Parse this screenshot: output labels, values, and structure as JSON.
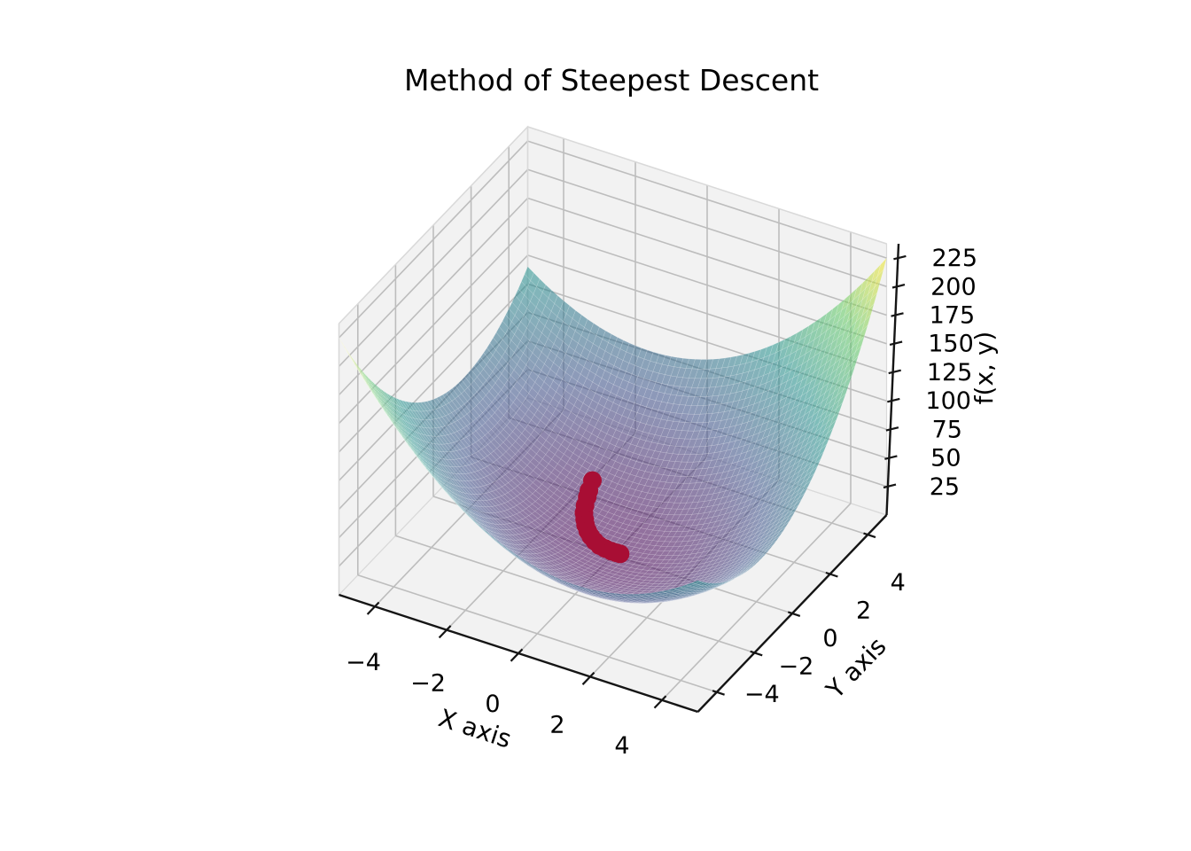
{
  "figure": {
    "title": "Method of Steepest Descent",
    "background": "#ffffff"
  },
  "tick_labels": {
    "x": [
      "−4",
      "−2",
      "0",
      "2",
      "4"
    ],
    "y": [
      "−4",
      "−2",
      "0",
      "2",
      "4"
    ],
    "z": [
      "25",
      "50",
      "75",
      "100",
      "125",
      "150",
      "175",
      "200",
      "225"
    ]
  },
  "styles": {
    "text": "#000000",
    "pane": "#f2f2f2",
    "pane_border": "#d9d9d9",
    "grid": "#bdbdbd",
    "spine": "#151515",
    "mesh_line": "rgba(255,255,255,0.28)",
    "viridis_stops": [
      [
        "0",
        "#440154"
      ],
      [
        "0.25",
        "#3b528b"
      ],
      [
        "0.5",
        "#21918c"
      ],
      [
        "0.75",
        "#5ec962"
      ],
      [
        "1",
        "#fde725"
      ]
    ]
  },
  "chart_data": {
    "type": "surface_3d",
    "title": "Method of Steepest Descent",
    "xlabel": "X axis",
    "ylabel": "Y axis",
    "zlabel": "f(x, y)",
    "x_range": [
      -5,
      5
    ],
    "y_range": [
      -5,
      5
    ],
    "z_range": [
      0,
      237.5
    ],
    "x_ticks": [
      -4,
      -2,
      0,
      2,
      4
    ],
    "y_ticks": [
      -4,
      -2,
      0,
      2,
      4
    ],
    "z_ticks": [
      25,
      50,
      75,
      100,
      125,
      150,
      175,
      200,
      225
    ],
    "grid": true,
    "legend": null,
    "view": {
      "elev_deg": 30,
      "azim_deg": -62,
      "projection": "orthographic-approx"
    },
    "surface": {
      "colormap": "viridis",
      "alpha": 0.55,
      "mesh_divisions": 60,
      "z_peak": 225,
      "z_model": {
        "description": "valley-shaped bowl reconstructed from figure: f(x,y) = A*(x+y)^2 + B*(x-y)^2, minimum 0 at origin, ~225 at (±5,±5) diagonal corners",
        "A": 2.25,
        "B": 1.15
      }
    },
    "descent_path": {
      "label": "steepest-descent iterate markers",
      "marker_color": "#a80e34",
      "marker_radius_px": 10.5,
      "z_offset": 4,
      "points_xy": [
        [
          -1.54,
          1.85
        ],
        [
          -1.48,
          1.55
        ],
        [
          -1.42,
          1.35
        ],
        [
          -1.34,
          1.08
        ],
        [
          -1.25,
          0.85
        ],
        [
          -1.13,
          0.66
        ],
        [
          -1.02,
          0.5
        ],
        [
          -0.87,
          0.33
        ],
        [
          -0.72,
          0.2
        ],
        [
          -0.55,
          0.09
        ],
        [
          -0.37,
          0.0
        ],
        [
          -0.2,
          -0.03
        ],
        [
          -0.01,
          -0.05
        ],
        [
          0.12,
          -0.05
        ],
        [
          0.23,
          -0.05
        ]
      ]
    }
  }
}
